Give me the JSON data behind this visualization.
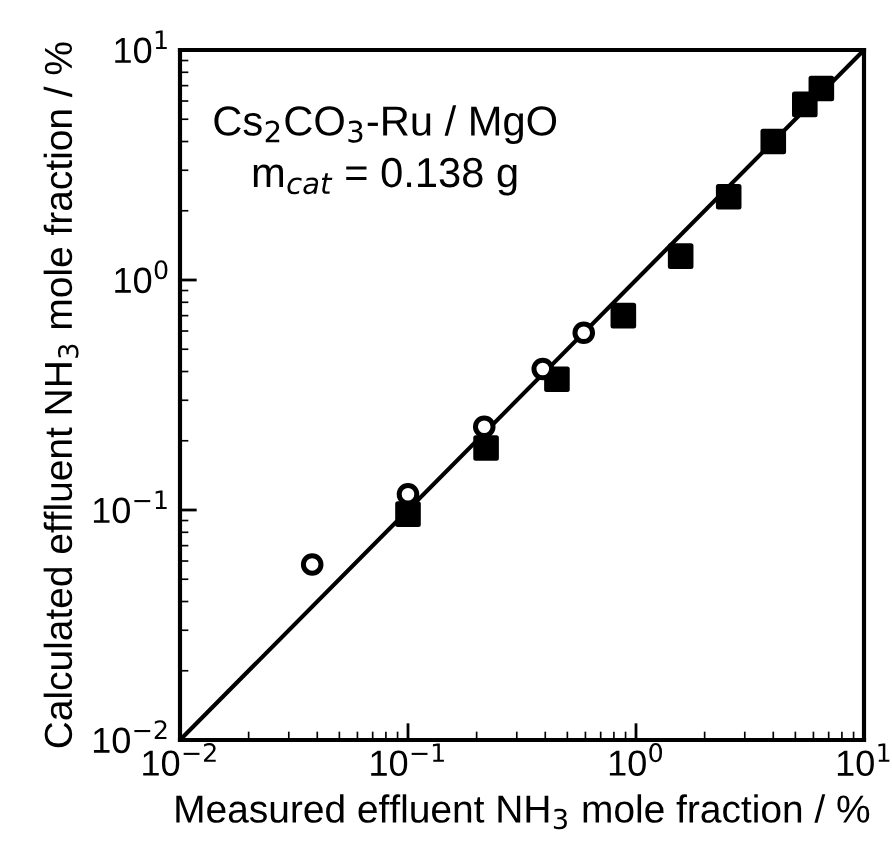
{
  "chart_data": {
    "type": "scatter",
    "xlabel": "Measured effluent NH$_{3}$ mole fraction / %",
    "ylabel": "Calculated effluent NH$_{3}$ mole fraction / %",
    "log": "xy",
    "grid": false,
    "legend": false,
    "xlim": [
      0.01,
      10
    ],
    "ylim": [
      0.01,
      10
    ],
    "xticks": [
      {
        "value": 0.01,
        "label": "10$^{−2}$"
      },
      {
        "value": 0.1,
        "label": "10$^{−1}$"
      },
      {
        "value": 1,
        "label": "10$^{0}$"
      },
      {
        "value": 10,
        "label": "10$^{1}$"
      }
    ],
    "yticks": [
      {
        "value": 0.01,
        "label": "10$^{−2}$"
      },
      {
        "value": 0.1,
        "label": "10$^{−1}$"
      },
      {
        "value": 1,
        "label": "10$^{0}$"
      },
      {
        "value": 10,
        "label": "10$^{1}$"
      }
    ],
    "annotations": [
      "Cs$_{2}$CO$_{3}$-Ru / MgO",
      "m$_{cat}$ = 0.138 g"
    ],
    "series": [
      {
        "type": "line",
        "color": "#000000",
        "marker": "none",
        "line_style": "solid",
        "x": [
          0.01,
          10
        ],
        "values": [
          0.01,
          10
        ]
      },
      {
        "color": "#000000",
        "marker": "square",
        "x": [
          6.5,
          5.5,
          4.0,
          2.55,
          1.57,
          0.88,
          0.45,
          0.22,
          0.1
        ],
        "values": [
          6.8,
          5.8,
          4.0,
          2.3,
          1.27,
          0.7,
          0.37,
          0.186,
          0.096
        ]
      },
      {
        "color": "#000000",
        "marker": "circle",
        "x": [
          0.59,
          0.39,
          0.216,
          0.1,
          0.038
        ],
        "values": [
          0.59,
          0.41,
          0.23,
          0.117,
          0.058
        ]
      }
    ]
  }
}
